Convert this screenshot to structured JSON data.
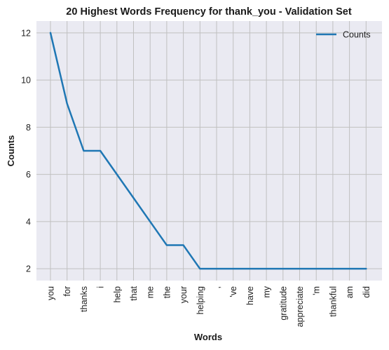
{
  "chart_data": {
    "type": "line",
    "title": "20 Highest Words Frequency for thank_you - Validation Set",
    "xlabel": "Words",
    "ylabel": "Counts",
    "categories": [
      "you",
      "for",
      "thanks",
      "i",
      "help",
      "that",
      "me",
      "the",
      "your",
      "helping",
      ",",
      "'ve",
      "have",
      "my",
      "gratitude",
      "appreciate",
      "'m",
      "thankful",
      "am",
      "did"
    ],
    "series": [
      {
        "name": "Counts",
        "values": [
          12,
          9,
          7,
          7,
          6,
          5,
          4,
          3,
          3,
          2,
          2,
          2,
          2,
          2,
          2,
          2,
          2,
          2,
          2,
          2
        ]
      }
    ],
    "ylim": [
      1.5,
      12.5
    ],
    "yticks": [
      2,
      4,
      6,
      8,
      10,
      12
    ],
    "grid": true,
    "legend": "top-right",
    "line_color": "#1f77b4",
    "background_color": "#eaeaf2",
    "grid_color": "#c0c0c0"
  }
}
